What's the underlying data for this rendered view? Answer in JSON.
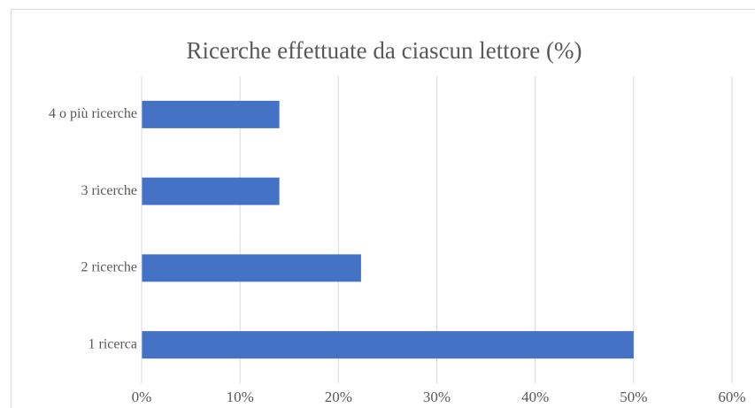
{
  "chart_data": {
    "type": "barh",
    "title": "Ricerche effettuate da ciascun lettore (%)",
    "categories": [
      "1 ricerca",
      "2 ricerche",
      "3 ricerche",
      "4 o più ricerche"
    ],
    "values": [
      50,
      22.3,
      14,
      14
    ],
    "color": "#4472c4",
    "xlim": [
      0,
      60
    ],
    "xticks": [
      {
        "value": 0,
        "label": "0%"
      },
      {
        "value": 10,
        "label": "10%"
      },
      {
        "value": 20,
        "label": "20%"
      },
      {
        "value": 30,
        "label": "30%"
      },
      {
        "value": 40,
        "label": "40%"
      },
      {
        "value": 50,
        "label": "50%"
      },
      {
        "value": 60,
        "label": "60%"
      }
    ],
    "grid": true
  }
}
